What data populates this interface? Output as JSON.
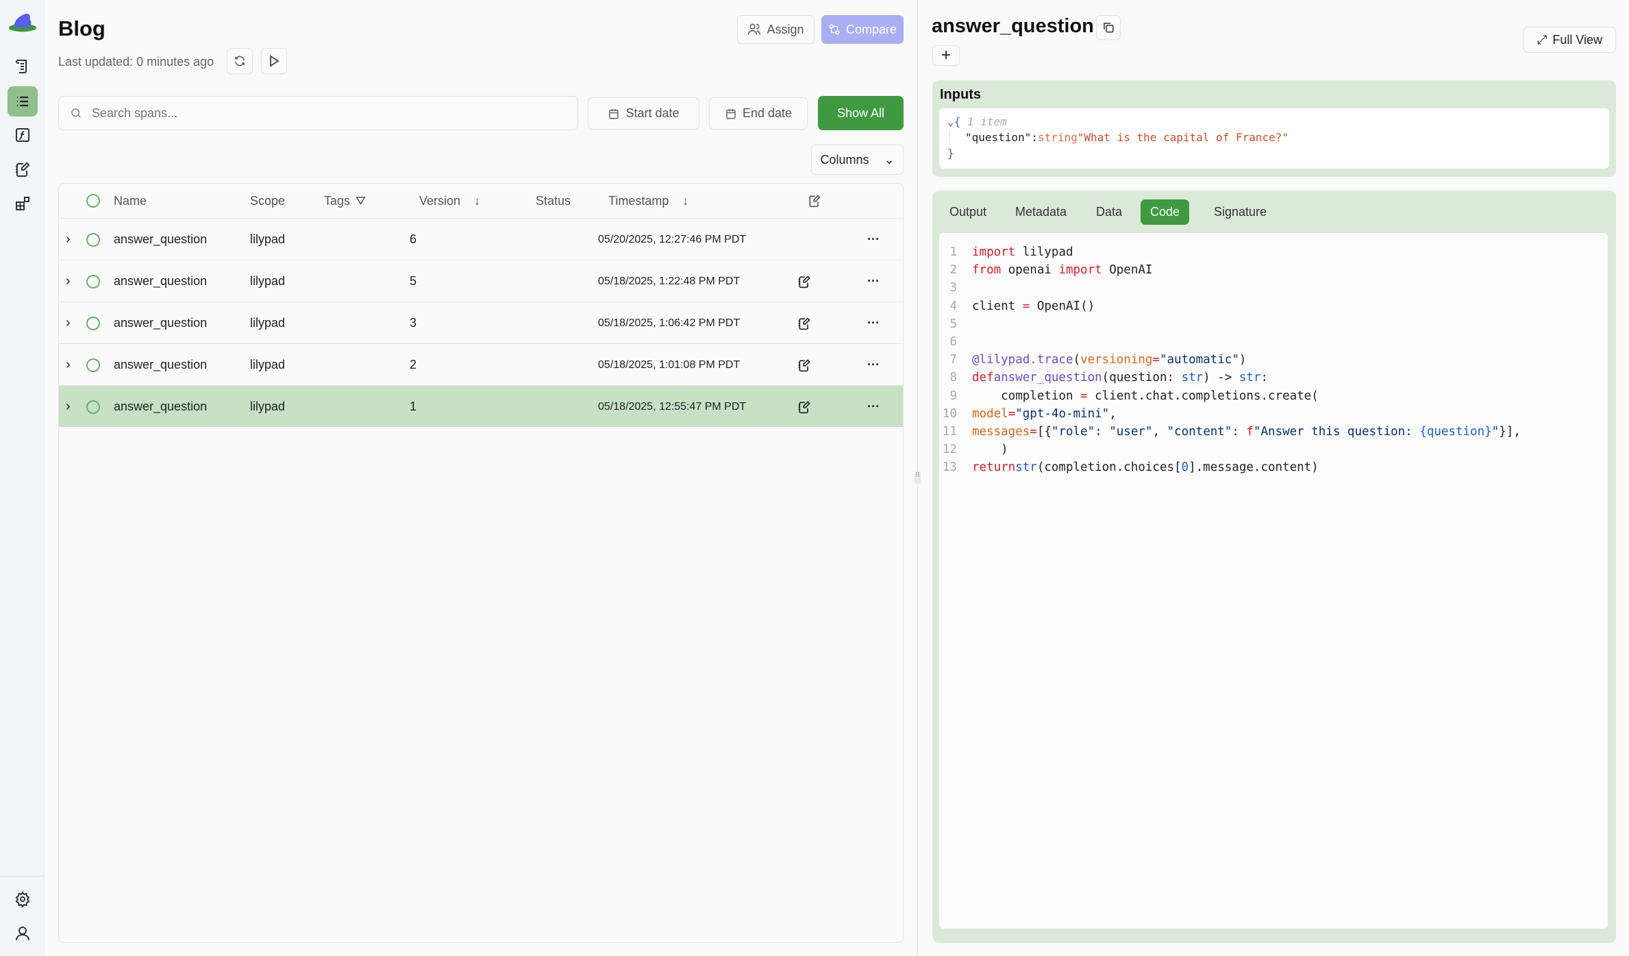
{
  "sidebar": {
    "items": [
      {
        "icon": "logo-frog-icon"
      },
      {
        "icon": "scroll-icon"
      },
      {
        "icon": "list-icon",
        "active": true
      },
      {
        "icon": "function-icon"
      },
      {
        "icon": "notebook-pen-icon"
      },
      {
        "icon": "blocks-icon"
      }
    ],
    "bottom": [
      {
        "icon": "gear-icon"
      },
      {
        "icon": "user-icon"
      }
    ]
  },
  "header": {
    "title": "Blog",
    "last_updated": "Last updated: 0 minutes ago",
    "assign": "Assign",
    "compare": "Compare"
  },
  "filters": {
    "search_placeholder": "Search spans...",
    "start_date": "Start date",
    "end_date": "End date",
    "show_all": "Show All",
    "columns": "Columns"
  },
  "table": {
    "headers": {
      "name": "Name",
      "scope": "Scope",
      "tags": "Tags",
      "version": "Version",
      "status": "Status",
      "timestamp": "Timestamp"
    },
    "rows": [
      {
        "name": "answer_question",
        "scope": "lilypad",
        "version": "6",
        "status": "",
        "timestamp": "05/20/2025, 12:27:46 PM PDT",
        "has_annotation": false
      },
      {
        "name": "answer_question",
        "scope": "lilypad",
        "version": "5",
        "status": "",
        "timestamp": "05/18/2025, 1:22:48 PM PDT",
        "has_annotation": true
      },
      {
        "name": "answer_question",
        "scope": "lilypad",
        "version": "3",
        "status": "",
        "timestamp": "05/18/2025, 1:06:42 PM PDT",
        "has_annotation": true
      },
      {
        "name": "answer_question",
        "scope": "lilypad",
        "version": "2",
        "status": "",
        "timestamp": "05/18/2025, 1:01:08 PM PDT",
        "has_annotation": true
      },
      {
        "name": "answer_question",
        "scope": "lilypad",
        "version": "1",
        "status": "",
        "timestamp": "05/18/2025, 12:55:47 PM PDT",
        "has_annotation": true,
        "selected": true
      }
    ]
  },
  "detail": {
    "title": "answer_question",
    "full_view": "Full View",
    "inputs_label": "Inputs",
    "json": {
      "open": "{",
      "count": "1 item",
      "key": "\"question\"",
      "colon": ":",
      "type": "string",
      "value": "\"What is the capital of France?\"",
      "close": "}"
    },
    "tabs": [
      "Output",
      "Metadata",
      "Data",
      "Code",
      "Signature"
    ],
    "active_tab": "Code"
  },
  "colors": {
    "accent": "#3f9a3f",
    "selected_row": "#c8e0c6",
    "compare": "#a9aef5",
    "card": "#dbe9d9"
  }
}
